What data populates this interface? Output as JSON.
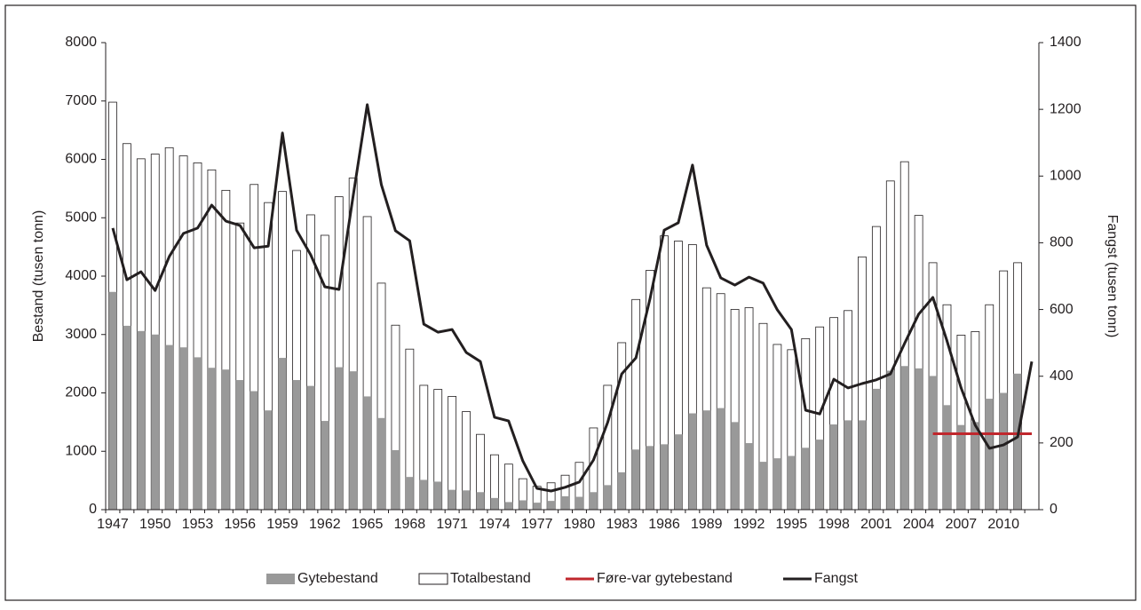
{
  "chart_data": {
    "type": "bar",
    "categories": [
      "1947",
      null,
      null,
      "1950",
      null,
      null,
      "1953",
      null,
      null,
      "1956",
      null,
      null,
      "1959",
      null,
      null,
      "1962",
      null,
      null,
      "1965",
      null,
      null,
      "1968",
      null,
      null,
      "1971",
      null,
      null,
      "1974",
      null,
      null,
      "1977",
      null,
      null,
      "1980",
      null,
      null,
      "1983",
      null,
      null,
      "1986",
      null,
      null,
      "1989",
      null,
      null,
      "1992",
      null,
      null,
      "1995",
      null,
      null,
      "1998",
      null,
      null,
      "2001",
      null,
      null,
      "2004",
      null,
      null,
      "2007",
      null,
      null,
      "2010",
      null,
      null
    ],
    "ylabel": "Bestand (tusen tonn)",
    "y2label": "Fangst (tusen tonn)",
    "ylim": [
      0,
      8000
    ],
    "yticks": [
      0,
      1000,
      2000,
      3000,
      4000,
      5000,
      6000,
      7000,
      8000
    ],
    "y2lim": [
      0,
      1400
    ],
    "y2ticks": [
      0,
      200,
      400,
      600,
      800,
      1000,
      1200,
      1400
    ],
    "legend": "bottom",
    "series": [
      {
        "name": "Totalbestand",
        "type": "bar",
        "color": "#ffffff",
        "values": [
          6980,
          6270,
          6010,
          6090,
          6200,
          6060,
          5940,
          5820,
          5470,
          4910,
          5570,
          5260,
          5450,
          4440,
          5050,
          4700,
          5360,
          5680,
          5020,
          3880,
          3160,
          2750,
          2130,
          2060,
          1940,
          1680,
          1290,
          940,
          780,
          530,
          400,
          460,
          590,
          810,
          1400,
          2130,
          2860,
          3600,
          4100,
          4690,
          4600,
          4540,
          3800,
          3700,
          3430,
          3460,
          3190,
          2830,
          2740,
          2930,
          3130,
          3290,
          3410,
          4330,
          4850,
          5630,
          5960,
          5040,
          4230,
          3510,
          2990,
          3050,
          3510,
          4090,
          4230,
          null
        ]
      },
      {
        "name": "Gytebestand",
        "type": "bar",
        "color": "#999999",
        "values": [
          3730,
          3150,
          3060,
          3000,
          2820,
          2780,
          2610,
          2430,
          2400,
          2220,
          2030,
          1700,
          2600,
          2220,
          2120,
          1520,
          2440,
          2370,
          1940,
          1570,
          1020,
          560,
          510,
          480,
          340,
          330,
          300,
          200,
          130,
          160,
          120,
          150,
          230,
          220,
          300,
          420,
          640,
          1030,
          1090,
          1120,
          1290,
          1650,
          1700,
          1740,
          1500,
          1140,
          820,
          880,
          920,
          1060,
          1200,
          1460,
          1530,
          1530,
          2070,
          2380,
          2460,
          2420,
          2290,
          1790,
          1450,
          1500,
          1900,
          2000,
          2330,
          null
        ]
      },
      {
        "name": "Føre-var gytebestand",
        "type": "line",
        "color": "#c0272d",
        "values": [
          null,
          null,
          null,
          null,
          null,
          null,
          null,
          null,
          null,
          null,
          null,
          null,
          null,
          null,
          null,
          null,
          null,
          null,
          null,
          null,
          null,
          null,
          null,
          null,
          null,
          null,
          null,
          null,
          null,
          null,
          null,
          null,
          null,
          null,
          null,
          null,
          null,
          null,
          null,
          null,
          null,
          null,
          null,
          null,
          null,
          null,
          null,
          null,
          null,
          null,
          null,
          null,
          null,
          null,
          null,
          null,
          null,
          null,
          1300,
          1300,
          1300,
          1300,
          1300,
          1300,
          1300,
          1300
        ]
      },
      {
        "name": "Fangst",
        "type": "line",
        "axis": "y2",
        "color": "#231f20",
        "values": [
          844,
          689,
          713,
          657,
          759,
          828,
          844,
          913,
          865,
          852,
          785,
          790,
          1129,
          838,
          764,
          668,
          660,
          940,
          1214,
          974,
          836,
          806,
          556,
          532,
          540,
          471,
          444,
          277,
          266,
          146,
          64,
          56,
          67,
          83,
          149,
          261,
          407,
          455,
          633,
          838,
          860,
          1033,
          793,
          695,
          673,
          697,
          679,
          599,
          540,
          298,
          287,
          391,
          365,
          378,
          389,
          407,
          498,
          586,
          636,
          506,
          365,
          253,
          184,
          194,
          218,
          444
        ]
      }
    ]
  }
}
